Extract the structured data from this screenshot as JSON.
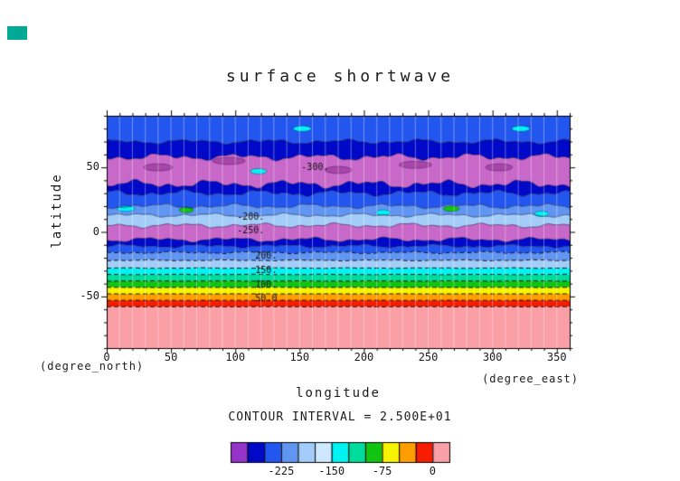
{
  "app": {
    "corner_swatch_color": "#00a896",
    "background": "#ffffff"
  },
  "chart_data": {
    "type": "filled_contour",
    "title": "surface shortwave",
    "xlabel": "longitude",
    "ylabel": "latitude",
    "x_unit": "(degree_east)",
    "y_unit": "(degree_north)",
    "x_range": [
      0,
      360
    ],
    "y_range": [
      -90,
      90
    ],
    "x_ticks": [
      "0",
      "50",
      "100",
      "150",
      "200",
      "250",
      "300",
      "350"
    ],
    "x_tick_values": [
      0,
      50,
      100,
      150,
      200,
      250,
      300,
      350
    ],
    "y_ticks": [
      "50",
      "0",
      "-50"
    ],
    "y_tick_values": [
      50,
      0,
      -50
    ],
    "minor_tick_step": 10,
    "grid": "vertical-graticule-every-10-deg",
    "contour_interval_label": "CONTOUR INTERVAL = 2.500E+01",
    "contour_interval_value": 25,
    "palette": {
      "blue": "#2356ee",
      "navy": "#0009c8",
      "orchid": "#c868c8",
      "cornflower": "#6095f2",
      "pale": "#a3cdf8",
      "cyan": "#00f2f2",
      "turquoise": "#00dc9b",
      "green": "#12c412",
      "yellow": "#f6f400",
      "orange": "#ff9e00",
      "red": "#f51c00",
      "pink": "#fb9fa6"
    },
    "boundaries": [
      {
        "lat": 70,
        "amp": 2.2
      },
      {
        "lat": 58,
        "amp": 3.2
      },
      {
        "lat": 37,
        "amp": 3.8
      },
      {
        "lat": 30,
        "amp": 2.8
      },
      {
        "lat": 20,
        "amp": 2.2
      },
      {
        "lat": 13,
        "amp": 1.8
      },
      {
        "lat": 5,
        "amp": 2.2
      },
      {
        "lat": -6,
        "amp": 2.2
      },
      {
        "lat": -11,
        "amp": 1.6
      },
      {
        "lat": -16,
        "amp": 1.0
      },
      {
        "lat": -22,
        "amp": 0.5
      },
      {
        "lat": -28,
        "amp": 0.3
      },
      {
        "lat": -33,
        "amp": 0.25
      },
      {
        "lat": -38,
        "amp": 0.2
      },
      {
        "lat": -43,
        "amp": 0.15
      },
      {
        "lat": -48,
        "amp": 0.12
      },
      {
        "lat": -53,
        "amp": 0.1
      },
      {
        "lat": -58,
        "amp": 0.1
      }
    ],
    "band_colors": [
      "blue",
      "navy",
      "orchid",
      "navy",
      "blue",
      "cornflower",
      "pale",
      "orchid",
      "navy",
      "blue",
      "cornflower",
      "pale",
      "cyan",
      "turquoise",
      "green",
      "yellow",
      "orange",
      "red",
      "pink"
    ],
    "annotations": [
      {
        "text": "-300.",
        "lon": 162,
        "lat": 50
      },
      {
        "text": "-200.",
        "lon": 112,
        "lat": 11
      },
      {
        "text": "-250.",
        "lon": 112,
        "lat": 1
      },
      {
        "text": "200.",
        "lon": 124,
        "lat": -19
      },
      {
        "text": "150.",
        "lon": 124,
        "lat": -30
      },
      {
        "text": "100.",
        "lon": 124,
        "lat": -41
      },
      {
        "text": "50.0",
        "lon": 124,
        "lat": -52
      }
    ],
    "spots": [
      {
        "lon": 15,
        "lat": 18,
        "w": 10,
        "h": 3,
        "color": "#00f2f2"
      },
      {
        "lon": 62,
        "lat": 17,
        "w": 8,
        "h": 3,
        "color": "#12c412"
      },
      {
        "lon": 118,
        "lat": 47,
        "w": 9,
        "h": 3,
        "color": "#00f2f2"
      },
      {
        "lon": 152,
        "lat": 80,
        "w": 10,
        "h": 3,
        "color": "#00f2f2"
      },
      {
        "lon": 215,
        "lat": 15,
        "w": 8,
        "h": 3,
        "color": "#00f2f2"
      },
      {
        "lon": 268,
        "lat": 18,
        "w": 9,
        "h": 3,
        "color": "#12c412"
      },
      {
        "lon": 322,
        "lat": 80,
        "w": 10,
        "h": 3,
        "color": "#00f2f2"
      },
      {
        "lon": 338,
        "lat": 14,
        "w": 8,
        "h": 3,
        "color": "#00f2f2"
      },
      {
        "lon": 40,
        "lat": 50,
        "w": 16,
        "h": 4,
        "color": "#a845a8"
      },
      {
        "lon": 95,
        "lat": 55,
        "w": 18,
        "h": 4,
        "color": "#a845a8"
      },
      {
        "lon": 180,
        "lat": 48,
        "w": 15,
        "h": 4,
        "color": "#a845a8"
      },
      {
        "lon": 240,
        "lat": 52,
        "w": 18,
        "h": 4,
        "color": "#a845a8"
      },
      {
        "lon": 305,
        "lat": 50,
        "w": 15,
        "h": 4,
        "color": "#a845a8"
      }
    ],
    "colorbar": {
      "cells": [
        "#9633c8",
        "#0009c8",
        "#2356ee",
        "#6095f2",
        "#a3cdf8",
        "#cfe8ff",
        "#00f2f2",
        "#00dc9b",
        "#12c412",
        "#f6f400",
        "#ff9e00",
        "#f51c00",
        "#fb9fa6"
      ],
      "tick_labels": [
        "-225",
        "-150",
        "-75",
        "0"
      ],
      "tick_boundary_index": [
        3,
        6,
        9,
        12
      ]
    }
  }
}
